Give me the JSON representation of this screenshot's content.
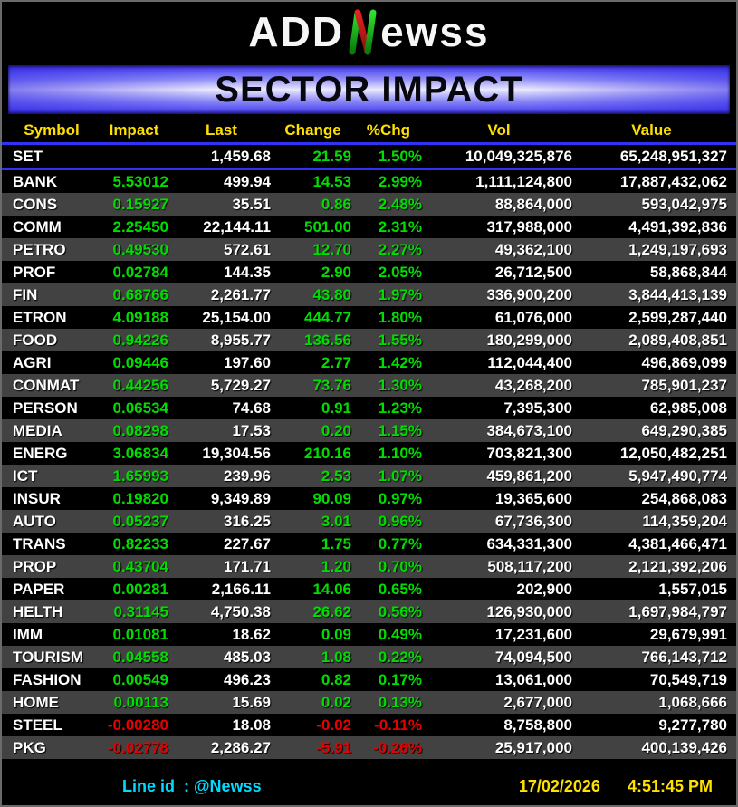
{
  "logo": {
    "prefix": "ADD",
    "n_letter": "N",
    "suffix": "ewss"
  },
  "banner": {
    "title": "SECTOR IMPACT"
  },
  "chart_data": {
    "type": "table",
    "title": "SECTOR IMPACT",
    "columns": [
      "Symbol",
      "Impact",
      "Last",
      "Change",
      "%Chg",
      "Vol",
      "Value"
    ],
    "index_row": {
      "symbol": "SET",
      "impact": "",
      "last": "1,459.68",
      "change": "21.59",
      "pchg": "1.50%",
      "vol": "10,049,325,876",
      "value": "65,248,951,327",
      "dir": "up"
    },
    "rows": [
      {
        "symbol": "BANK",
        "impact": "5.53012",
        "last": "499.94",
        "change": "14.53",
        "pchg": "2.99%",
        "vol": "1,111,124,800",
        "value": "17,887,432,062",
        "dir": "up"
      },
      {
        "symbol": "CONS",
        "impact": "0.15927",
        "last": "35.51",
        "change": "0.86",
        "pchg": "2.48%",
        "vol": "88,864,000",
        "value": "593,042,975",
        "dir": "up"
      },
      {
        "symbol": "COMM",
        "impact": "2.25450",
        "last": "22,144.11",
        "change": "501.00",
        "pchg": "2.31%",
        "vol": "317,988,000",
        "value": "4,491,392,836",
        "dir": "up"
      },
      {
        "symbol": "PETRO",
        "impact": "0.49530",
        "last": "572.61",
        "change": "12.70",
        "pchg": "2.27%",
        "vol": "49,362,100",
        "value": "1,249,197,693",
        "dir": "up"
      },
      {
        "symbol": "PROF",
        "impact": "0.02784",
        "last": "144.35",
        "change": "2.90",
        "pchg": "2.05%",
        "vol": "26,712,500",
        "value": "58,868,844",
        "dir": "up"
      },
      {
        "symbol": "FIN",
        "impact": "0.68766",
        "last": "2,261.77",
        "change": "43.80",
        "pchg": "1.97%",
        "vol": "336,900,200",
        "value": "3,844,413,139",
        "dir": "up"
      },
      {
        "symbol": "ETRON",
        "impact": "4.09188",
        "last": "25,154.00",
        "change": "444.77",
        "pchg": "1.80%",
        "vol": "61,076,000",
        "value": "2,599,287,440",
        "dir": "up"
      },
      {
        "symbol": "FOOD",
        "impact": "0.94226",
        "last": "8,955.77",
        "change": "136.56",
        "pchg": "1.55%",
        "vol": "180,299,000",
        "value": "2,089,408,851",
        "dir": "up"
      },
      {
        "symbol": "AGRI",
        "impact": "0.09446",
        "last": "197.60",
        "change": "2.77",
        "pchg": "1.42%",
        "vol": "112,044,400",
        "value": "496,869,099",
        "dir": "up"
      },
      {
        "symbol": "CONMAT",
        "impact": "0.44256",
        "last": "5,729.27",
        "change": "73.76",
        "pchg": "1.30%",
        "vol": "43,268,200",
        "value": "785,901,237",
        "dir": "up"
      },
      {
        "symbol": "PERSON",
        "impact": "0.06534",
        "last": "74.68",
        "change": "0.91",
        "pchg": "1.23%",
        "vol": "7,395,300",
        "value": "62,985,008",
        "dir": "up"
      },
      {
        "symbol": "MEDIA",
        "impact": "0.08298",
        "last": "17.53",
        "change": "0.20",
        "pchg": "1.15%",
        "vol": "384,673,100",
        "value": "649,290,385",
        "dir": "up"
      },
      {
        "symbol": "ENERG",
        "impact": "3.06834",
        "last": "19,304.56",
        "change": "210.16",
        "pchg": "1.10%",
        "vol": "703,821,300",
        "value": "12,050,482,251",
        "dir": "up"
      },
      {
        "symbol": "ICT",
        "impact": "1.65993",
        "last": "239.96",
        "change": "2.53",
        "pchg": "1.07%",
        "vol": "459,861,200",
        "value": "5,947,490,774",
        "dir": "up"
      },
      {
        "symbol": "INSUR",
        "impact": "0.19820",
        "last": "9,349.89",
        "change": "90.09",
        "pchg": "0.97%",
        "vol": "19,365,600",
        "value": "254,868,083",
        "dir": "up"
      },
      {
        "symbol": "AUTO",
        "impact": "0.05237",
        "last": "316.25",
        "change": "3.01",
        "pchg": "0.96%",
        "vol": "67,736,300",
        "value": "114,359,204",
        "dir": "up"
      },
      {
        "symbol": "TRANS",
        "impact": "0.82233",
        "last": "227.67",
        "change": "1.75",
        "pchg": "0.77%",
        "vol": "634,331,300",
        "value": "4,381,466,471",
        "dir": "up"
      },
      {
        "symbol": "PROP",
        "impact": "0.43704",
        "last": "171.71",
        "change": "1.20",
        "pchg": "0.70%",
        "vol": "508,117,200",
        "value": "2,121,392,206",
        "dir": "up"
      },
      {
        "symbol": "PAPER",
        "impact": "0.00281",
        "last": "2,166.11",
        "change": "14.06",
        "pchg": "0.65%",
        "vol": "202,900",
        "value": "1,557,015",
        "dir": "up"
      },
      {
        "symbol": "HELTH",
        "impact": "0.31145",
        "last": "4,750.38",
        "change": "26.62",
        "pchg": "0.56%",
        "vol": "126,930,000",
        "value": "1,697,984,797",
        "dir": "up"
      },
      {
        "symbol": "IMM",
        "impact": "0.01081",
        "last": "18.62",
        "change": "0.09",
        "pchg": "0.49%",
        "vol": "17,231,600",
        "value": "29,679,991",
        "dir": "up"
      },
      {
        "symbol": "TOURISM",
        "impact": "0.04558",
        "last": "485.03",
        "change": "1.08",
        "pchg": "0.22%",
        "vol": "74,094,500",
        "value": "766,143,712",
        "dir": "up"
      },
      {
        "symbol": "FASHION",
        "impact": "0.00549",
        "last": "496.23",
        "change": "0.82",
        "pchg": "0.17%",
        "vol": "13,061,000",
        "value": "70,549,719",
        "dir": "up"
      },
      {
        "symbol": "HOME",
        "impact": "0.00113",
        "last": "15.69",
        "change": "0.02",
        "pchg": "0.13%",
        "vol": "2,677,000",
        "value": "1,068,666",
        "dir": "up"
      },
      {
        "symbol": "STEEL",
        "impact": "-0.00280",
        "last": "18.08",
        "change": "-0.02",
        "pchg": "-0.11%",
        "vol": "8,758,800",
        "value": "9,277,780",
        "dir": "down"
      },
      {
        "symbol": "PKG",
        "impact": "-0.02778",
        "last": "2,286.27",
        "change": "-5.91",
        "pchg": "-0.26%",
        "vol": "25,917,000",
        "value": "400,139,426",
        "dir": "down"
      }
    ]
  },
  "footer": {
    "line_id": "Line id  : @Newss",
    "date": "17/02/2026",
    "time": "4:51:45 PM"
  },
  "colors": {
    "up": "#00DE00",
    "down": "#E80000",
    "header_yellow": "#FFE100",
    "line_blue": "#3232F5",
    "row_shade": "#424242",
    "footer_cyan": "#00DCFF"
  }
}
